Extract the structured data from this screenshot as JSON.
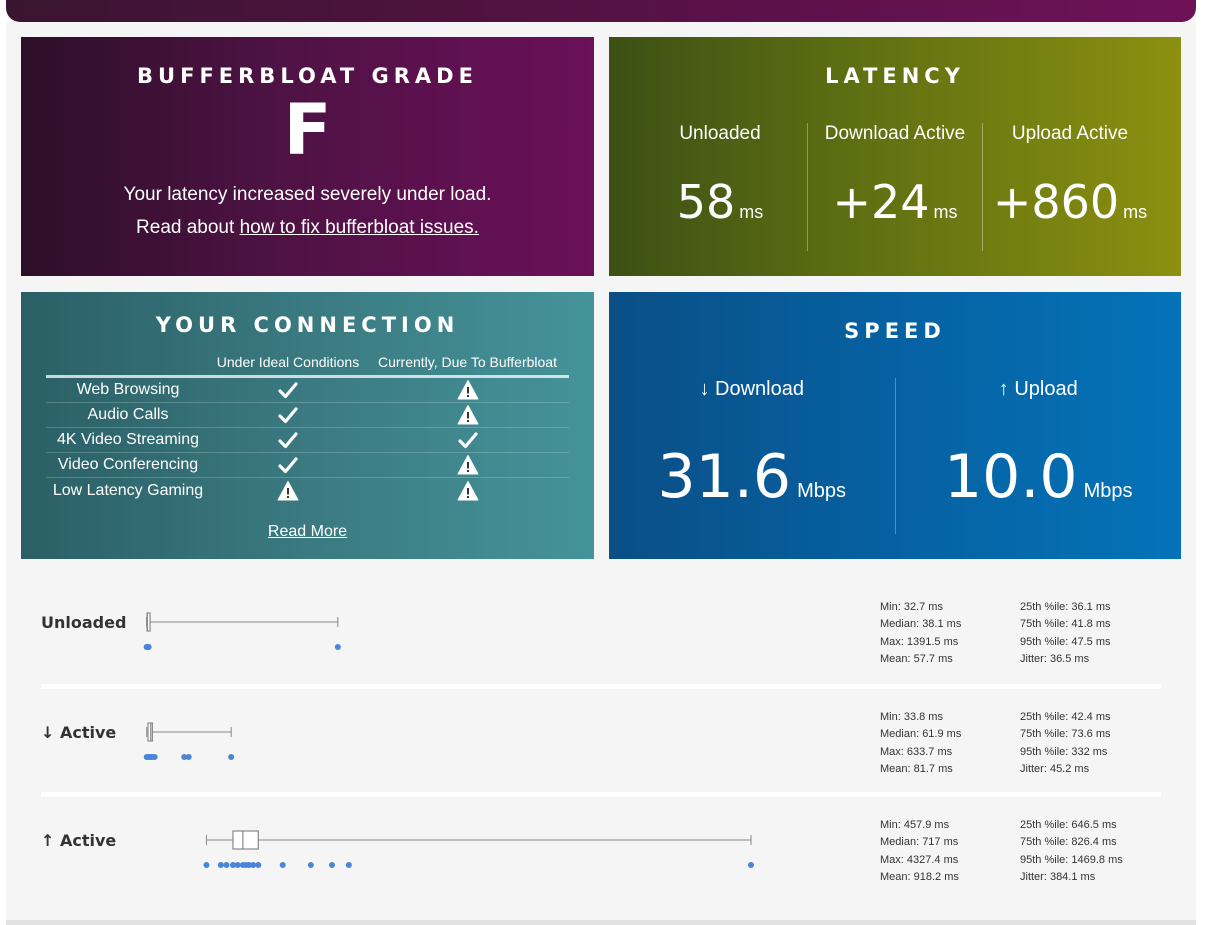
{
  "grade": {
    "title": "BUFFERBLOAT GRADE",
    "letter": "F",
    "message": "Your latency increased severely under load.",
    "link_prefix": "Read about ",
    "link_text": "how to fix bufferbloat issues."
  },
  "latency": {
    "title": "LATENCY",
    "columns": [
      {
        "label": "Unloaded",
        "value": "58",
        "unit": "ms"
      },
      {
        "label": "Download Active",
        "value": "+24",
        "unit": "ms"
      },
      {
        "label": "Upload Active",
        "value": "+860",
        "unit": "ms"
      }
    ]
  },
  "connection": {
    "title": "YOUR CONNECTION",
    "headers": [
      "",
      "Under Ideal Conditions",
      "Currently, Due To Bufferbloat"
    ],
    "rows": [
      {
        "name": "Web Browsing",
        "ideal": "check",
        "current": "warning"
      },
      {
        "name": "Audio Calls",
        "ideal": "check",
        "current": "warning"
      },
      {
        "name": "4K Video Streaming",
        "ideal": "check",
        "current": "check"
      },
      {
        "name": "Video Conferencing",
        "ideal": "check",
        "current": "warning"
      },
      {
        "name": "Low Latency Gaming",
        "ideal": "warning",
        "current": "warning"
      }
    ],
    "read_more": "Read More"
  },
  "speed": {
    "title": "SPEED",
    "download": {
      "arrow": "↓",
      "label": "Download",
      "value": "31.6",
      "unit": "Mbps"
    },
    "upload": {
      "arrow": "↑",
      "label": "Upload",
      "value": "10.0",
      "unit": "Mbps"
    }
  },
  "distribution": {
    "axis_max_ms": 4327.4,
    "marker_color": "#4a86d8",
    "rows": [
      {
        "label": "Unloaded",
        "stats_left": [
          "Min: 32.7 ms",
          "Median: 38.1 ms",
          "Max: 1391.5 ms",
          "Mean: 57.7 ms"
        ],
        "stats_right": [
          "25th %ile: 36.1 ms",
          "75th %ile: 41.8 ms",
          "95th %ile: 47.5 ms",
          "Jitter: 36.5 ms"
        ],
        "box": {
          "whisker_low": 32.7,
          "q1": 36.1,
          "median": 38.1,
          "q3": 41.8,
          "whisker_high": 1391.5
        },
        "points": [
          32.7,
          36.1,
          38.1,
          41.8,
          47.5,
          1391.5
        ]
      },
      {
        "label": "↓ Active",
        "stats_left": [
          "Min: 33.8 ms",
          "Median: 61.9 ms",
          "Max: 633.7 ms",
          "Mean: 81.7 ms"
        ],
        "stats_right": [
          "25th %ile: 42.4 ms",
          "75th %ile: 73.6 ms",
          "95th %ile: 332 ms",
          "Jitter: 45.2 ms"
        ],
        "box": {
          "whisker_low": 33.8,
          "q1": 42.4,
          "median": 61.9,
          "q3": 73.6,
          "whisker_high": 633.7
        },
        "points": [
          33.8,
          42.4,
          55,
          61.9,
          73.6,
          90,
          300,
          332,
          633.7
        ]
      },
      {
        "label": "↑ Active",
        "stats_left": [
          "Min: 457.9 ms",
          "Median: 717 ms",
          "Max: 4327.4 ms",
          "Mean: 918.2 ms"
        ],
        "stats_right": [
          "25th %ile: 646.5 ms",
          "75th %ile: 826.4 ms",
          "95th %ile: 1469.8 ms",
          "Jitter: 384.1 ms"
        ],
        "box": {
          "whisker_low": 457.9,
          "q1": 646.5,
          "median": 717,
          "q3": 826.4,
          "whisker_high": 4327.4
        },
        "points": [
          457.9,
          560,
          600,
          646.5,
          680,
          717,
          740,
          760,
          790,
          826.4,
          1000,
          1200,
          1350,
          1469.8,
          4327.4
        ]
      }
    ]
  }
}
